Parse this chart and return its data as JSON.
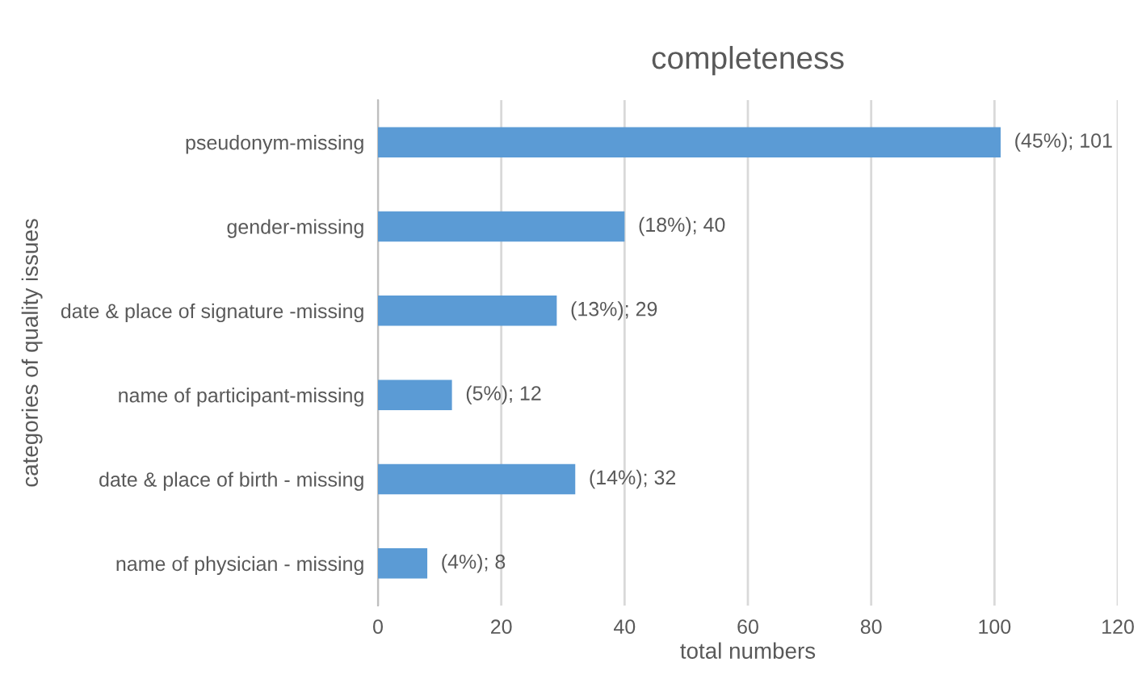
{
  "chart_data": {
    "type": "bar",
    "orientation": "horizontal",
    "title": "completeness",
    "xlabel": "total numbers",
    "ylabel": "categories of quality issues",
    "categories": [
      "pseudonym-missing",
      "gender-missing",
      "date & place of signature -missing",
      "name of participant-missing",
      "date & place of birth - missing",
      "name of physician - missing"
    ],
    "values": [
      101,
      40,
      29,
      12,
      32,
      8
    ],
    "value_labels": [
      "(45%); 101",
      "(18%); 40",
      "(13%); 29",
      "(5%); 12",
      "(14%); 32",
      "(4%); 8"
    ],
    "color": "#5b9bd5",
    "xlim": [
      0,
      120
    ],
    "xticks": [
      0,
      20,
      40,
      60,
      80,
      100,
      120
    ],
    "grid": "x",
    "legend": false
  }
}
